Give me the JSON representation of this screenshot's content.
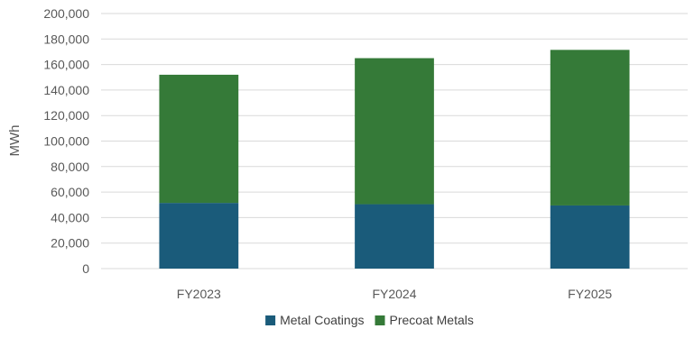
{
  "chart_data": {
    "type": "bar",
    "stacked": true,
    "categories": [
      "FY2023",
      "FY2024",
      "FY2025"
    ],
    "series": [
      {
        "name": "Metal Coatings",
        "values": [
          51500,
          50500,
          49500
        ],
        "color": "#1a5b7a"
      },
      {
        "name": "Precoat Metals",
        "values": [
          100500,
          114500,
          122000
        ],
        "color": "#357a38"
      }
    ],
    "ylabel": "MWh",
    "ylim": [
      0,
      200000
    ],
    "yticks": [
      0,
      20000,
      40000,
      60000,
      80000,
      100000,
      120000,
      140000,
      160000,
      180000,
      200000
    ],
    "ytick_labels": [
      "0",
      "20,000",
      "40,000",
      "60,000",
      "80,000",
      "100,000",
      "120,000",
      "140,000",
      "160,000",
      "180,000",
      "200,000"
    ],
    "grid": true,
    "legend_position": "bottom"
  }
}
